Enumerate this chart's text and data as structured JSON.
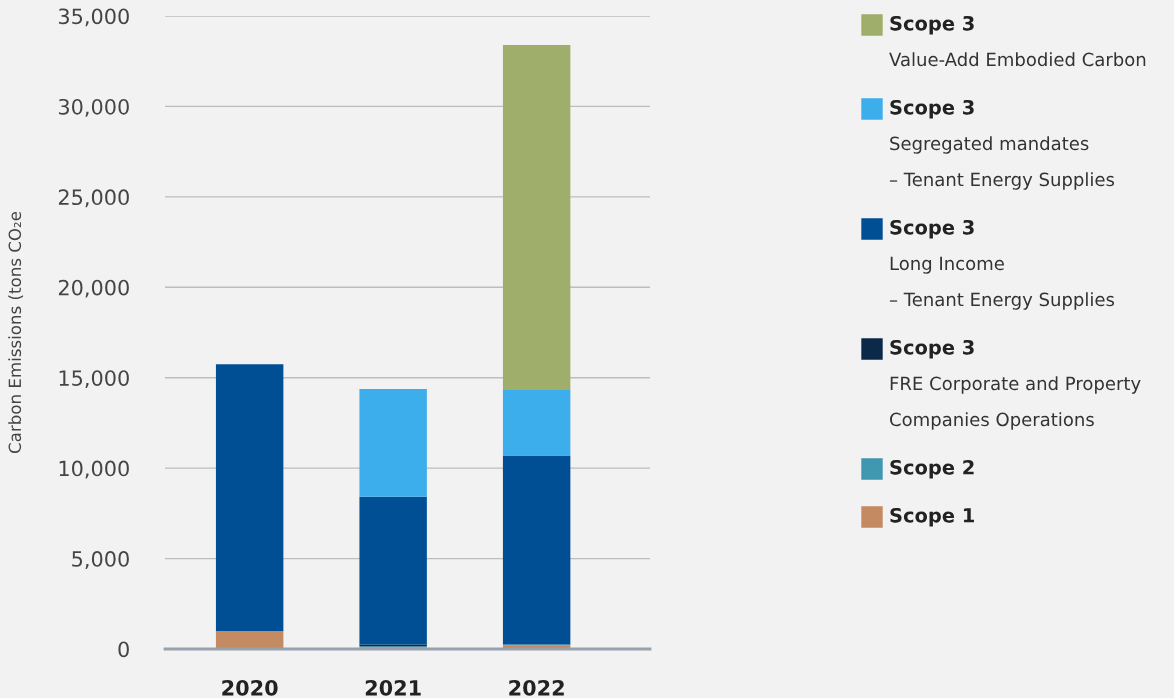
{
  "chart_data": {
    "type": "bar",
    "stacked": true,
    "categories": [
      "2020",
      "2021",
      "2022"
    ],
    "ylabel": "Carbon Emissions (tons CO₂e",
    "ylim": [
      0,
      35000
    ],
    "yticks": [
      {
        "value": 0,
        "label": "0"
      },
      {
        "value": 5000,
        "label": "5,000"
      },
      {
        "value": 10000,
        "label": "10,000"
      },
      {
        "value": 15000,
        "label": "15,000"
      },
      {
        "value": 20000,
        "label": "20,000"
      },
      {
        "value": 25000,
        "label": "25,000"
      },
      {
        "value": 30000,
        "label": "30,000"
      },
      {
        "value": 35000,
        "label": "35,000"
      }
    ],
    "grid": "y",
    "legend": "right",
    "series": [
      {
        "name": "Scope 1",
        "color": "#c48b63",
        "values": [
          950,
          100,
          200
        ]
      },
      {
        "name": "Scope 2",
        "color": "#3f97b0",
        "values": [
          50,
          50,
          50
        ]
      },
      {
        "name": "Scope 3\nFRE Corporate and Property\nCompanies Operations",
        "color": "#0b2a4a",
        "values": [
          0,
          100,
          0
        ]
      },
      {
        "name": "Scope 3\nLong Income\n– Tenant Energy Supplies",
        "color": "#004f95",
        "values": [
          14750,
          8170,
          10450
        ]
      },
      {
        "name": "Scope 3\nSegregated mandates\n– Tenant Energy Supplies",
        "color": "#3daeec",
        "values": [
          0,
          5950,
          3620
        ]
      },
      {
        "name": "Scope 3\nValue-Add Embodied Carbon",
        "color": "#9fae6a",
        "values": [
          0,
          0,
          19080
        ]
      }
    ]
  }
}
